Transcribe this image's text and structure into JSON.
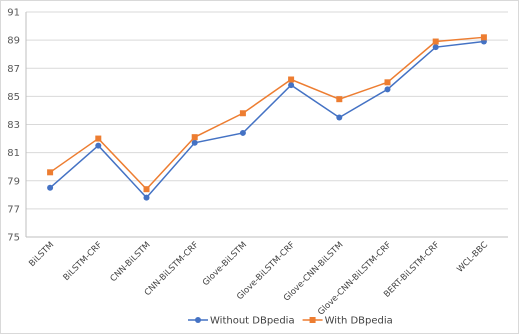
{
  "chart_data": {
    "type": "line",
    "title": "",
    "xlabel": "",
    "ylabel": "",
    "categories": [
      "BiLSTM",
      "BiLSTM-CRF",
      "CNN-BiLSTM",
      "CNN-BiLSTM-CRF",
      "Glove-BiLSTM",
      "Glove-BiLSTM-CRF",
      "Glove-CNN-BiLSTM",
      "Glove-CNN-BiLSTM-CRF",
      "BERT-BiLSTM-CRF",
      "WCL-BBC"
    ],
    "ylim": [
      75,
      91
    ],
    "yticks": [
      75,
      77,
      79,
      81,
      83,
      85,
      87,
      89,
      91
    ],
    "grid": true,
    "legend": "bottom",
    "series": [
      {
        "name": "Without DBpedia",
        "color": "#4472c4",
        "marker": "circle",
        "values": [
          78.5,
          81.5,
          77.8,
          81.7,
          82.4,
          85.8,
          83.5,
          85.5,
          88.5,
          88.9
        ]
      },
      {
        "name": "With DBpedia",
        "color": "#ed7d31",
        "marker": "square",
        "values": [
          79.6,
          82.0,
          78.4,
          82.1,
          83.8,
          86.2,
          84.8,
          86.0,
          88.9,
          89.2
        ]
      }
    ]
  }
}
